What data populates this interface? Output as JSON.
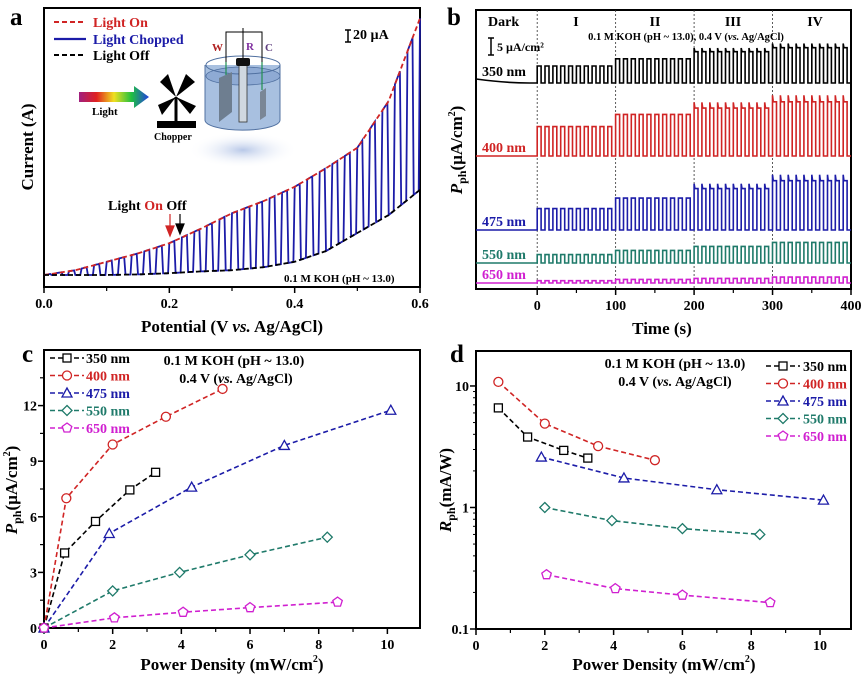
{
  "chart_data": [
    {
      "panel": "a",
      "type": "line",
      "xlabel": "Potential (V vs. Ag/AgCl)",
      "xlabel_parts": [
        "Potential (V ",
        "vs.",
        " Ag/AgCl)"
      ],
      "ylabel": "Current (A)",
      "xlim": [
        0,
        0.6
      ],
      "x_ticks": [
        "0.0",
        "0.2",
        "0.4",
        "0.6"
      ],
      "x_tick_values": [
        0,
        0.2,
        0.4,
        0.6
      ],
      "legend": [
        "Light On",
        "Light Chopped",
        "Light Off"
      ],
      "scale_bar": "20 µA",
      "annotation": {
        "light": "Light",
        "on": "On",
        "off": "Off"
      },
      "condition": "0.1 M KOH (pH ~ 13.0)",
      "inset": {
        "light": "Light",
        "chopper": "Chopper",
        "w": "W",
        "r": "R",
        "c": "C"
      },
      "chop_period_V": 0.02,
      "units": "relative µA above baseline",
      "x": [
        0,
        0.05,
        0.1,
        0.15,
        0.2,
        0.25,
        0.3,
        0.35,
        0.4,
        0.45,
        0.5,
        0.55,
        0.6
      ],
      "series": [
        {
          "name": "Light On",
          "color": "#d02424",
          "values": [
            0,
            8,
            22,
            36,
            53,
            77,
            103,
            123,
            147,
            178,
            212,
            290,
            428
          ]
        },
        {
          "name": "Light Off",
          "color": "#000000",
          "values": [
            0,
            0,
            0,
            1,
            3,
            6,
            8,
            13,
            22,
            40,
            70,
            100,
            142
          ]
        }
      ],
      "chopped_color": "#1c1ca8"
    },
    {
      "panel": "b",
      "type": "line",
      "xlabel": "Time (s)",
      "ylabel_parts": [
        "P",
        "ph",
        "(µA/cm",
        "2",
        ")"
      ],
      "xlim": [
        -78,
        400
      ],
      "x_ticks": [
        "0",
        "100",
        "200",
        "300",
        "400"
      ],
      "x_tick_values": [
        0,
        100,
        200,
        300,
        400
      ],
      "segments": [
        "Dark",
        "I",
        "II",
        "III",
        "IV"
      ],
      "condition_parts": [
        "0.1 M KOH (pH ~ 13.0), 0.4 V (",
        "vs.",
        " Ag/AgCl)"
      ],
      "scale_bar": "5 µA/cm²",
      "period_s": 10,
      "series": [
        {
          "name": "350 nm",
          "color": "#000000",
          "segment_amplitudes": [
            4.05,
            5.75,
            7.45,
            8.4
          ]
        },
        {
          "name": "400 nm",
          "color": "#d02424",
          "segment_amplitudes": [
            7.0,
            9.9,
            11.4,
            12.9
          ]
        },
        {
          "name": "475 nm",
          "color": "#1c1ca8",
          "segment_amplitudes": [
            5.1,
            7.6,
            9.85,
            11.75
          ]
        },
        {
          "name": "550 nm",
          "color": "#1f7a6a",
          "segment_amplitudes": [
            2.0,
            3.0,
            3.95,
            4.9
          ]
        },
        {
          "name": "650 nm",
          "color": "#d020d0",
          "segment_amplitudes": [
            0.55,
            0.85,
            1.1,
            1.4
          ]
        }
      ]
    },
    {
      "panel": "c",
      "type": "scatter",
      "xlabel_parts": [
        "Power Density (mW/cm",
        "2",
        ")"
      ],
      "ylabel_parts": [
        "P",
        "ph",
        "(µA/cm",
        "2",
        ")"
      ],
      "xlim": [
        0,
        10.95
      ],
      "ylim": [
        0,
        15
      ],
      "x_ticks": [
        "0",
        "2",
        "4",
        "6",
        "8",
        "10"
      ],
      "x_tick_values": [
        0,
        2,
        4,
        6,
        8,
        10
      ],
      "y_ticks": [
        "0",
        "3",
        "6",
        "9",
        "12"
      ],
      "y_tick_values": [
        0,
        3,
        6,
        9,
        12
      ],
      "condition": [
        "0.1 M KOH (pH ~ 13.0)",
        "0.4 V (",
        "vs.",
        " Ag/AgCl)"
      ],
      "series": [
        {
          "name": "350 nm",
          "color": "#000000",
          "marker": "square",
          "x": [
            0,
            0.6,
            1.5,
            2.5,
            3.25
          ],
          "y": [
            0,
            4.05,
            5.75,
            7.45,
            8.4
          ]
        },
        {
          "name": "400 nm",
          "color": "#d02424",
          "marker": "circle",
          "x": [
            0,
            0.65,
            2.0,
            3.55,
            5.2
          ],
          "y": [
            0,
            7.0,
            9.9,
            11.4,
            12.9
          ]
        },
        {
          "name": "475 nm",
          "color": "#1c1ca8",
          "marker": "triangle",
          "x": [
            0,
            1.9,
            4.3,
            7.0,
            10.1
          ],
          "y": [
            0,
            5.1,
            7.6,
            9.85,
            11.75
          ]
        },
        {
          "name": "550 nm",
          "color": "#1f7a6a",
          "marker": "diamond",
          "x": [
            0,
            2.0,
            3.95,
            6.0,
            8.25
          ],
          "y": [
            0,
            2.0,
            3.0,
            3.95,
            4.9
          ]
        },
        {
          "name": "650 nm",
          "color": "#d020d0",
          "marker": "pentagon",
          "x": [
            0,
            2.05,
            4.05,
            6.0,
            8.55
          ],
          "y": [
            0,
            0.55,
            0.85,
            1.1,
            1.4
          ]
        }
      ]
    },
    {
      "panel": "d",
      "type": "scatter",
      "yscale": "log",
      "xlabel_parts": [
        "Power Density (mW/cm",
        "2",
        ")"
      ],
      "ylabel_parts": [
        "R",
        "ph",
        "(mA/W)"
      ],
      "xlim": [
        0,
        10.9
      ],
      "ylim": [
        0.1,
        19.4
      ],
      "x_ticks": [
        "0",
        "2",
        "4",
        "6",
        "8",
        "10"
      ],
      "x_tick_values": [
        0,
        2,
        4,
        6,
        8,
        10
      ],
      "y_ticks": [
        "0.1",
        "1",
        "10"
      ],
      "y_tick_values": [
        0.1,
        1,
        10
      ],
      "condition": [
        "0.1 M KOH (pH ~ 13.0)",
        "0.4 V (",
        "vs.",
        " Ag/AgCl)"
      ],
      "series": [
        {
          "name": "350 nm",
          "color": "#000000",
          "marker": "square",
          "x": [
            0.65,
            1.5,
            2.55,
            3.25
          ],
          "y": [
            6.6,
            3.8,
            2.95,
            2.55
          ]
        },
        {
          "name": "400 nm",
          "color": "#d02424",
          "marker": "circle",
          "x": [
            0.65,
            2.0,
            3.55,
            5.2
          ],
          "y": [
            10.8,
            4.9,
            3.2,
            2.45
          ]
        },
        {
          "name": "475 nm",
          "color": "#1c1ca8",
          "marker": "triangle",
          "x": [
            1.9,
            4.3,
            7.0,
            10.1
          ],
          "y": [
            2.6,
            1.75,
            1.4,
            1.15
          ]
        },
        {
          "name": "550 nm",
          "color": "#1f7a6a",
          "marker": "diamond",
          "x": [
            2.0,
            3.95,
            6.0,
            8.25
          ],
          "y": [
            1.0,
            0.78,
            0.67,
            0.6
          ]
        },
        {
          "name": "650 nm",
          "color": "#d020d0",
          "marker": "pentagon",
          "x": [
            2.05,
            4.05,
            6.0,
            8.55
          ],
          "y": [
            0.28,
            0.215,
            0.19,
            0.165
          ]
        }
      ]
    }
  ],
  "panel_labels": [
    "a",
    "b",
    "c",
    "d"
  ]
}
